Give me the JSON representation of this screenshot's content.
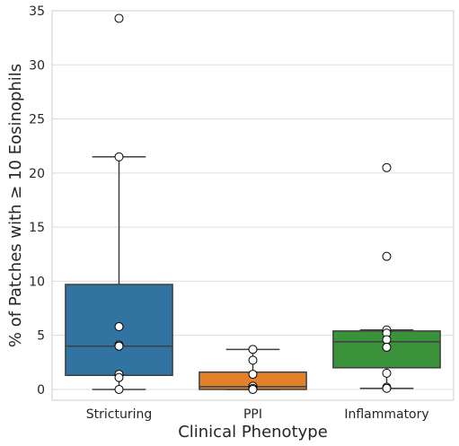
{
  "chart_data": {
    "type": "box",
    "title": "",
    "xlabel": "Clinical Phenotype",
    "ylabel": "% of Patches with ≥ 10 Eosinophils",
    "ylim": [
      -1,
      35
    ],
    "yticks": [
      0,
      5,
      10,
      15,
      20,
      25,
      30,
      35
    ],
    "grid": "horizontal",
    "categories": [
      "Stricturing",
      "PPI",
      "Inflammatory"
    ],
    "colors": [
      "#3274a1",
      "#e1812c",
      "#3a923a"
    ],
    "boxes": [
      {
        "q1": 1.3,
        "median": 4.0,
        "q3": 9.7,
        "whisker_low": 0.0,
        "whisker_high": 21.5
      },
      {
        "q1": 0.0,
        "median": 0.25,
        "q3": 1.6,
        "whisker_low": 0.0,
        "whisker_high": 3.7
      },
      {
        "q1": 2.0,
        "median": 4.4,
        "q3": 5.4,
        "whisker_low": 0.1,
        "whisker_high": 5.5
      }
    ],
    "points": [
      [
        34.3,
        21.5,
        5.8,
        4.1,
        4.0,
        1.4,
        1.1,
        0.0
      ],
      [
        3.7,
        2.7,
        1.4,
        0.3,
        0.1,
        0.0
      ],
      [
        20.5,
        12.3,
        5.5,
        5.2,
        4.6,
        3.9,
        1.5,
        0.2,
        0.1
      ]
    ]
  }
}
